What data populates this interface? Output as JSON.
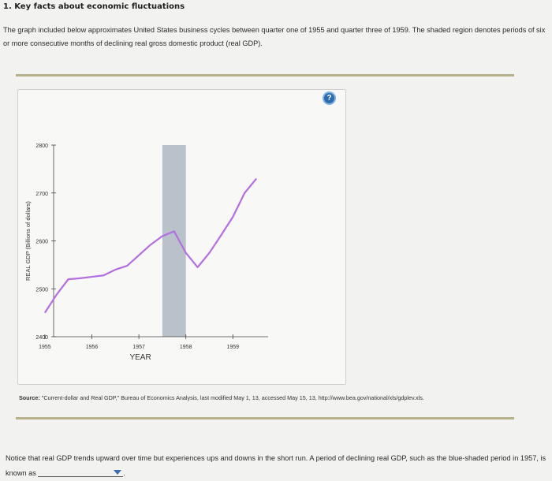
{
  "question": {
    "number_title": "1. Key facts about economic fluctuations",
    "intro": "The graph included below approximates United States business cycles between quarter one of 1955 and quarter three of 1959. The shaded region denotes periods of six or more consecutive months of declining real gross domestic product (real GDP).",
    "help_symbol": "?",
    "source_label": "Source:",
    "source_text": "\"Current-dollar and Real GDP,\" Bureau of Economics Analysis, last modified May 1, 13, accessed May 15, 13, http://www.bea.gov/national/xls/gdplev.xls.",
    "prompt_before": "Notice that real GDP trends upward over time but experiences ups and downs in the short run. A period of declining real GDP, such as the blue-shaded period in 1957, is known as",
    "prompt_after": ".",
    "dropdown_selected": ""
  },
  "colors": {
    "line": "#b36fe0",
    "shade": "#b9c1cb",
    "axis": "#444444",
    "rule": "#b7b18a"
  },
  "chart_data": {
    "type": "line",
    "xlabel": "YEAR",
    "ylabel": "REAL GDP (Billions of dollars)",
    "x_ticks": [
      1955,
      1956,
      1957,
      1958,
      1959
    ],
    "y_ticks": [
      2400,
      2500,
      2600,
      2700,
      2800
    ],
    "xlim": [
      1954.75,
      1959.75
    ],
    "ylim": [
      2400,
      2800
    ],
    "shaded_region": [
      1957.5,
      1958.0
    ],
    "series": [
      {
        "x": [
          1955.0,
          1955.25,
          1955.5,
          1955.75,
          1956.0,
          1956.25,
          1956.5,
          1956.75,
          1957.0,
          1957.25,
          1957.5,
          1957.75,
          1958.0,
          1958.25,
          1958.5,
          1958.75,
          1959.0,
          1959.25,
          1959.5
        ],
        "y": [
          2450,
          2488,
          2520,
          2522,
          2525,
          2528,
          2540,
          2548,
          2570,
          2592,
          2610,
          2620,
          2575,
          2545,
          2575,
          2612,
          2650,
          2700,
          2730
        ]
      }
    ]
  }
}
